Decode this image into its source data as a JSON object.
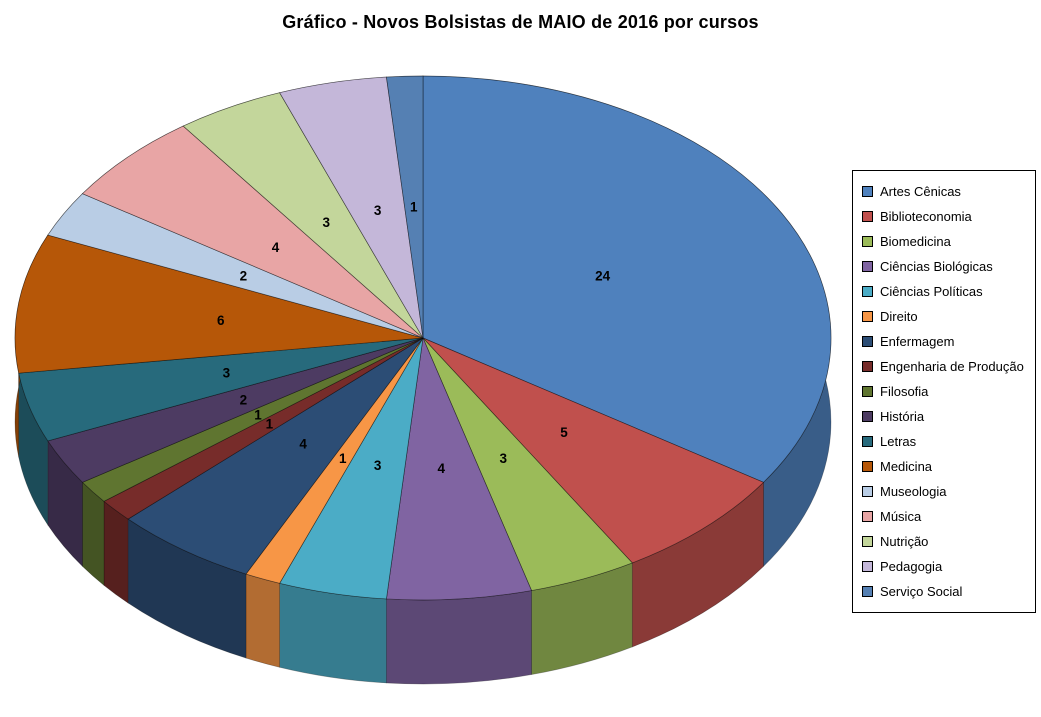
{
  "chart_data": {
    "type": "pie",
    "title": "Gráfico - Novos Bolsistas de MAIO de 2016 por cursos",
    "effect_3d": true,
    "start_angle_deg": 0,
    "direction": "clockwise",
    "legend_position": "right",
    "data_labels": "value",
    "total": 70,
    "categories": [
      "Artes Cênicas",
      "Biblioteconomia",
      "Biomedicina",
      "Ciências Biológicas",
      "Ciências Políticas",
      "Direito",
      "Enfermagem",
      "Engenharia de Produção",
      "Filosofia",
      "História",
      "Letras",
      "Medicina",
      "Museologia",
      "Música",
      "Nutrição",
      "Pedagogia",
      "Serviço Social"
    ],
    "values": [
      24,
      5,
      3,
      4,
      3,
      1,
      4,
      1,
      1,
      2,
      3,
      6,
      2,
      4,
      3,
      3,
      1
    ],
    "colors": [
      "#4F81BD",
      "#C0504D",
      "#9BBB59",
      "#8064A2",
      "#4BACC6",
      "#F79646",
      "#2C4D75",
      "#772C2A",
      "#5F7530",
      "#4D3B62",
      "#276A7C",
      "#B65708",
      "#B9CDE5",
      "#E8A5A5",
      "#C3D69B",
      "#C4B7D9",
      "#5580B3"
    ]
  }
}
